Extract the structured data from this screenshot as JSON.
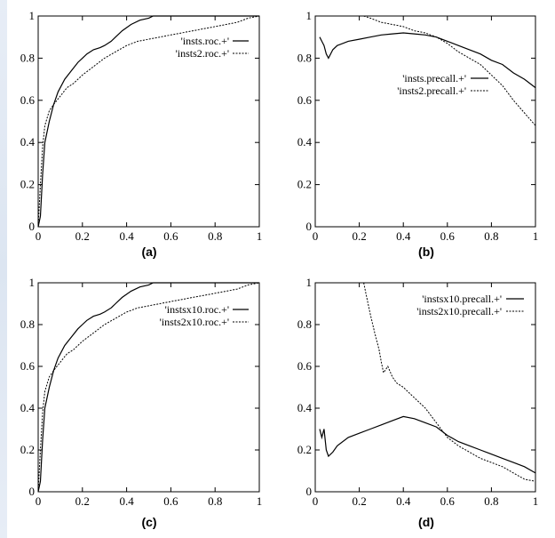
{
  "chart_data": [
    {
      "id": "a",
      "type": "line",
      "caption": "(a)",
      "xlim": [
        0,
        1
      ],
      "ylim": [
        0,
        1
      ],
      "xticks": [
        "0",
        "0.2",
        "0.4",
        "0.6",
        "0.8",
        "1"
      ],
      "yticks": [
        "0",
        "0.2",
        "0.4",
        "0.6",
        "0.8",
        "1"
      ],
      "legend_position": "top-right",
      "series": [
        {
          "name": "'insts.roc.+'",
          "style": "solid",
          "x": [
            0,
            0.01,
            0.02,
            0.03,
            0.05,
            0.07,
            0.09,
            0.12,
            0.15,
            0.18,
            0.2,
            0.22,
            0.25,
            0.28,
            0.3,
            0.33,
            0.35,
            0.38,
            0.42,
            0.46,
            0.5,
            0.52,
            0.55,
            0.6,
            0.7,
            0.8,
            0.9,
            1.0
          ],
          "y": [
            0.0,
            0.05,
            0.25,
            0.4,
            0.5,
            0.58,
            0.64,
            0.7,
            0.74,
            0.78,
            0.8,
            0.82,
            0.84,
            0.85,
            0.86,
            0.88,
            0.9,
            0.93,
            0.96,
            0.98,
            0.99,
            1.0,
            1.0,
            1.0,
            1.0,
            1.0,
            1.0,
            1.0
          ]
        },
        {
          "name": "'insts2.roc.+'",
          "style": "dashed",
          "x": [
            0,
            0.01,
            0.02,
            0.03,
            0.05,
            0.07,
            0.1,
            0.13,
            0.16,
            0.2,
            0.25,
            0.3,
            0.35,
            0.4,
            0.45,
            0.5,
            0.55,
            0.6,
            0.7,
            0.8,
            0.9,
            0.95,
            1.0
          ],
          "y": [
            0.0,
            0.2,
            0.38,
            0.48,
            0.55,
            0.58,
            0.62,
            0.66,
            0.68,
            0.72,
            0.76,
            0.8,
            0.83,
            0.86,
            0.88,
            0.89,
            0.9,
            0.91,
            0.93,
            0.95,
            0.97,
            0.99,
            1.0
          ]
        }
      ]
    },
    {
      "id": "b",
      "type": "line",
      "caption": "(b)",
      "xlim": [
        0,
        1
      ],
      "ylim": [
        0,
        1
      ],
      "xticks": [
        "0",
        "0.2",
        "0.4",
        "0.6",
        "0.8",
        "1"
      ],
      "yticks": [
        "0",
        "0.2",
        "0.4",
        "0.6",
        "0.8",
        "1"
      ],
      "legend_position": "center-right",
      "series": [
        {
          "name": "'insts.precall.+'",
          "style": "solid",
          "x": [
            0.02,
            0.03,
            0.04,
            0.05,
            0.06,
            0.08,
            0.1,
            0.15,
            0.2,
            0.25,
            0.3,
            0.35,
            0.4,
            0.45,
            0.5,
            0.55,
            0.6,
            0.65,
            0.7,
            0.75,
            0.8,
            0.85,
            0.9,
            0.95,
            1.0
          ],
          "y": [
            0.9,
            0.88,
            0.86,
            0.82,
            0.8,
            0.84,
            0.86,
            0.88,
            0.89,
            0.9,
            0.91,
            0.915,
            0.92,
            0.915,
            0.91,
            0.9,
            0.88,
            0.86,
            0.84,
            0.82,
            0.79,
            0.77,
            0.73,
            0.7,
            0.66
          ]
        },
        {
          "name": "'insts2.precall.+'",
          "style": "dashed",
          "x": [
            0.22,
            0.25,
            0.3,
            0.35,
            0.4,
            0.45,
            0.5,
            0.55,
            0.6,
            0.65,
            0.7,
            0.75,
            0.8,
            0.85,
            0.9,
            0.95,
            1.0
          ],
          "y": [
            1.0,
            0.99,
            0.97,
            0.96,
            0.95,
            0.93,
            0.92,
            0.9,
            0.87,
            0.83,
            0.8,
            0.77,
            0.72,
            0.67,
            0.6,
            0.54,
            0.48
          ]
        }
      ]
    },
    {
      "id": "c",
      "type": "line",
      "caption": "(c)",
      "xlim": [
        0,
        1
      ],
      "ylim": [
        0,
        1
      ],
      "xticks": [
        "0",
        "0.2",
        "0.4",
        "0.6",
        "0.8",
        "1"
      ],
      "yticks": [
        "0",
        "0.2",
        "0.4",
        "0.6",
        "0.8",
        "1"
      ],
      "legend_position": "top-right",
      "series": [
        {
          "name": "'instsx10.roc.+'",
          "style": "solid",
          "x": [
            0,
            0.01,
            0.02,
            0.03,
            0.05,
            0.07,
            0.09,
            0.12,
            0.15,
            0.18,
            0.2,
            0.22,
            0.25,
            0.28,
            0.3,
            0.33,
            0.35,
            0.38,
            0.42,
            0.46,
            0.5,
            0.52,
            0.55,
            0.6,
            0.7,
            0.8,
            0.9,
            1.0
          ],
          "y": [
            0.0,
            0.05,
            0.25,
            0.4,
            0.5,
            0.58,
            0.64,
            0.7,
            0.74,
            0.78,
            0.8,
            0.82,
            0.84,
            0.85,
            0.86,
            0.88,
            0.9,
            0.93,
            0.96,
            0.98,
            0.99,
            1.0,
            1.0,
            1.0,
            1.0,
            1.0,
            1.0,
            1.0
          ]
        },
        {
          "name": "'insts2x10.roc.+'",
          "style": "dashed",
          "x": [
            0,
            0.01,
            0.02,
            0.03,
            0.05,
            0.07,
            0.1,
            0.13,
            0.16,
            0.2,
            0.25,
            0.3,
            0.35,
            0.4,
            0.45,
            0.5,
            0.55,
            0.6,
            0.7,
            0.8,
            0.9,
            0.95,
            1.0
          ],
          "y": [
            0.0,
            0.2,
            0.38,
            0.48,
            0.55,
            0.58,
            0.62,
            0.66,
            0.68,
            0.72,
            0.76,
            0.8,
            0.83,
            0.86,
            0.88,
            0.89,
            0.9,
            0.91,
            0.93,
            0.95,
            0.97,
            0.99,
            1.0
          ]
        }
      ]
    },
    {
      "id": "d",
      "type": "line",
      "caption": "(d)",
      "xlim": [
        0,
        1
      ],
      "ylim": [
        0,
        1
      ],
      "xticks": [
        "0",
        "0.2",
        "0.4",
        "0.6",
        "0.8",
        "1"
      ],
      "yticks": [
        "0",
        "0.2",
        "0.4",
        "0.6",
        "0.8",
        "1"
      ],
      "legend_position": "top-right",
      "series": [
        {
          "name": "'instsx10.precall.+'",
          "style": "solid",
          "x": [
            0.02,
            0.03,
            0.04,
            0.05,
            0.06,
            0.08,
            0.1,
            0.15,
            0.2,
            0.25,
            0.3,
            0.35,
            0.4,
            0.45,
            0.5,
            0.55,
            0.6,
            0.65,
            0.7,
            0.75,
            0.8,
            0.85,
            0.9,
            0.95,
            1.0
          ],
          "y": [
            0.3,
            0.26,
            0.3,
            0.2,
            0.17,
            0.19,
            0.22,
            0.26,
            0.28,
            0.3,
            0.32,
            0.34,
            0.36,
            0.35,
            0.33,
            0.31,
            0.27,
            0.24,
            0.22,
            0.2,
            0.18,
            0.16,
            0.14,
            0.12,
            0.09
          ]
        },
        {
          "name": "'insts2x10.precall.+'",
          "style": "dashed",
          "x": [
            0.22,
            0.23,
            0.25,
            0.27,
            0.29,
            0.3,
            0.31,
            0.33,
            0.35,
            0.37,
            0.4,
            0.43,
            0.45,
            0.5,
            0.55,
            0.6,
            0.65,
            0.7,
            0.75,
            0.8,
            0.85,
            0.9,
            0.95,
            1.0
          ],
          "y": [
            1.0,
            0.95,
            0.85,
            0.76,
            0.68,
            0.62,
            0.57,
            0.6,
            0.55,
            0.52,
            0.5,
            0.47,
            0.45,
            0.4,
            0.33,
            0.26,
            0.22,
            0.19,
            0.16,
            0.14,
            0.12,
            0.09,
            0.06,
            0.05
          ]
        }
      ]
    }
  ]
}
